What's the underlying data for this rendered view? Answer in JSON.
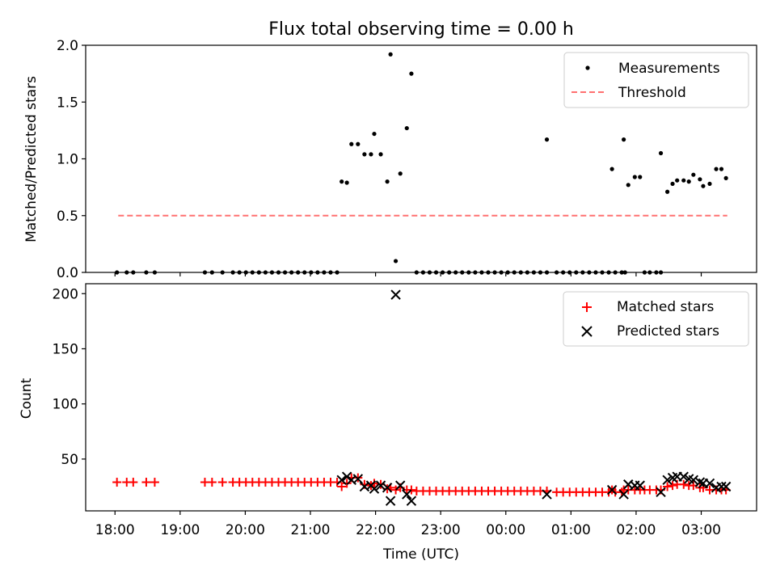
{
  "title": "Flux total observing time = 0.00 h",
  "chart_data": [
    {
      "type": "scatter",
      "ylabel": "Matched/Predicted stars",
      "xlabel": "",
      "x_unit": "hours since 18:00 UTC",
      "xlim": [
        -0.45,
        9.85
      ],
      "ylim": [
        0,
        2.0
      ],
      "yticks": [
        0.0,
        0.5,
        1.0,
        1.5,
        2.0
      ],
      "ytick_labels": [
        "0.0",
        "0.5",
        "1.0",
        "1.5",
        "2.0"
      ],
      "grid": false,
      "legend_position": "top-right",
      "legend": [
        "Measurements",
        "Threshold"
      ],
      "series": [
        {
          "name": "Measurements",
          "marker": "dot",
          "color": "#000000",
          "points": [
            [
              0.03,
              0
            ],
            [
              0.18,
              0
            ],
            [
              0.28,
              0
            ],
            [
              0.48,
              0
            ],
            [
              0.61,
              0
            ],
            [
              1.38,
              0
            ],
            [
              1.49,
              0
            ],
            [
              1.65,
              0
            ],
            [
              1.81,
              0
            ],
            [
              1.91,
              0
            ],
            [
              2.01,
              0
            ],
            [
              2.11,
              0
            ],
            [
              2.21,
              0
            ],
            [
              2.31,
              0
            ],
            [
              2.41,
              0
            ],
            [
              2.51,
              0
            ],
            [
              2.61,
              0
            ],
            [
              2.71,
              0
            ],
            [
              2.81,
              0
            ],
            [
              2.91,
              0
            ],
            [
              3.01,
              0
            ],
            [
              3.11,
              0
            ],
            [
              3.21,
              0
            ],
            [
              3.31,
              0
            ],
            [
              3.41,
              0
            ],
            [
              3.48,
              0.8
            ],
            [
              3.56,
              0.79
            ],
            [
              3.63,
              1.13
            ],
            [
              3.73,
              1.13
            ],
            [
              3.83,
              1.04
            ],
            [
              3.93,
              1.04
            ],
            [
              3.98,
              1.22
            ],
            [
              4.08,
              1.04
            ],
            [
              4.18,
              0.8
            ],
            [
              4.23,
              1.92
            ],
            [
              4.31,
              0.1
            ],
            [
              4.38,
              0.87
            ],
            [
              4.48,
              1.27
            ],
            [
              4.55,
              1.75
            ],
            [
              4.63,
              0
            ],
            [
              4.73,
              0
            ],
            [
              4.83,
              0
            ],
            [
              4.93,
              0
            ],
            [
              5.03,
              0
            ],
            [
              5.13,
              0
            ],
            [
              5.23,
              0
            ],
            [
              5.33,
              0
            ],
            [
              5.43,
              0
            ],
            [
              5.53,
              0
            ],
            [
              5.63,
              0
            ],
            [
              5.73,
              0
            ],
            [
              5.83,
              0
            ],
            [
              5.93,
              0
            ],
            [
              6.03,
              0
            ],
            [
              6.13,
              0
            ],
            [
              6.23,
              0
            ],
            [
              6.33,
              0
            ],
            [
              6.43,
              0
            ],
            [
              6.53,
              0
            ],
            [
              6.63,
              0
            ],
            [
              6.63,
              1.17
            ],
            [
              6.78,
              0
            ],
            [
              6.88,
              0
            ],
            [
              6.98,
              0
            ],
            [
              7.08,
              0
            ],
            [
              7.18,
              0
            ],
            [
              7.28,
              0
            ],
            [
              7.38,
              0
            ],
            [
              7.48,
              0
            ],
            [
              7.58,
              0
            ],
            [
              7.68,
              0
            ],
            [
              7.78,
              0
            ],
            [
              7.63,
              0.91
            ],
            [
              7.81,
              1.17
            ],
            [
              7.88,
              0.77
            ],
            [
              7.98,
              0.84
            ],
            [
              8.06,
              0.84
            ],
            [
              7.83,
              0
            ],
            [
              8.13,
              0
            ],
            [
              8.21,
              0
            ],
            [
              8.31,
              0
            ],
            [
              8.38,
              0
            ],
            [
              8.38,
              1.05
            ],
            [
              8.48,
              0.71
            ],
            [
              8.56,
              0.78
            ],
            [
              8.63,
              0.81
            ],
            [
              8.73,
              0.81
            ],
            [
              8.81,
              0.8
            ],
            [
              8.88,
              0.86
            ],
            [
              8.98,
              0.82
            ],
            [
              9.03,
              0.76
            ],
            [
              9.13,
              0.78
            ],
            [
              9.23,
              0.91
            ],
            [
              9.31,
              0.91
            ],
            [
              9.38,
              0.83
            ]
          ]
        },
        {
          "name": "Threshold",
          "style": "dashed",
          "color": "#ff7070",
          "x": [
            0.05,
            9.4
          ],
          "y": [
            0.5,
            0.5
          ]
        }
      ]
    },
    {
      "type": "scatter",
      "ylabel": "Count",
      "xlabel": "Time (UTC)",
      "x_unit": "hours since 18:00 UTC",
      "xlim": [
        -0.45,
        9.85
      ],
      "ylim": [
        3,
        209
      ],
      "yticks": [
        50,
        100,
        150,
        200
      ],
      "ytick_labels": [
        "50",
        "100",
        "150",
        "200"
      ],
      "xticks": [
        0,
        1,
        2,
        3,
        4,
        5,
        6,
        7,
        8,
        9
      ],
      "xtick_labels": [
        "18:00",
        "19:00",
        "20:00",
        "21:00",
        "22:00",
        "23:00",
        "00:00",
        "01:00",
        "02:00",
        "03:00"
      ],
      "grid": false,
      "legend_position": "top-right",
      "legend": [
        "Matched stars",
        "Predicted stars"
      ],
      "series": [
        {
          "name": "Matched stars",
          "marker": "plus",
          "color": "#ff0000",
          "points": [
            [
              0.03,
              29
            ],
            [
              0.18,
              29
            ],
            [
              0.28,
              29
            ],
            [
              0.48,
              29
            ],
            [
              0.61,
              29
            ],
            [
              1.38,
              29
            ],
            [
              1.49,
              29
            ],
            [
              1.65,
              29
            ],
            [
              1.81,
              29
            ],
            [
              1.91,
              29
            ],
            [
              2.01,
              29
            ],
            [
              2.11,
              29
            ],
            [
              2.21,
              29
            ],
            [
              2.31,
              29
            ],
            [
              2.41,
              29
            ],
            [
              2.51,
              29
            ],
            [
              2.61,
              29
            ],
            [
              2.71,
              29
            ],
            [
              2.81,
              29
            ],
            [
              2.91,
              29
            ],
            [
              3.01,
              29
            ],
            [
              3.11,
              29
            ],
            [
              3.21,
              29
            ],
            [
              3.31,
              29
            ],
            [
              3.41,
              29
            ],
            [
              3.48,
              25
            ],
            [
              3.56,
              28
            ],
            [
              3.63,
              33
            ],
            [
              3.73,
              33
            ],
            [
              3.83,
              27
            ],
            [
              3.93,
              26
            ],
            [
              3.98,
              28
            ],
            [
              4.08,
              27
            ],
            [
              4.18,
              23
            ],
            [
              4.23,
              24
            ],
            [
              4.31,
              22
            ],
            [
              4.38,
              24
            ],
            [
              4.48,
              22
            ],
            [
              4.55,
              22
            ],
            [
              4.63,
              21
            ],
            [
              4.73,
              21
            ],
            [
              4.83,
              21
            ],
            [
              4.93,
              21
            ],
            [
              5.03,
              21
            ],
            [
              5.13,
              21
            ],
            [
              5.23,
              21
            ],
            [
              5.33,
              21
            ],
            [
              5.43,
              21
            ],
            [
              5.53,
              21
            ],
            [
              5.63,
              21
            ],
            [
              5.73,
              21
            ],
            [
              5.83,
              21
            ],
            [
              5.93,
              21
            ],
            [
              6.03,
              21
            ],
            [
              6.13,
              21
            ],
            [
              6.23,
              21
            ],
            [
              6.33,
              21
            ],
            [
              6.43,
              21
            ],
            [
              6.53,
              21
            ],
            [
              6.63,
              21
            ],
            [
              6.78,
              20
            ],
            [
              6.88,
              20
            ],
            [
              6.98,
              20
            ],
            [
              7.08,
              20
            ],
            [
              7.18,
              20
            ],
            [
              7.28,
              20
            ],
            [
              7.38,
              20
            ],
            [
              7.48,
              20
            ],
            [
              7.58,
              20
            ],
            [
              7.68,
              20
            ],
            [
              7.78,
              20
            ],
            [
              7.63,
              22
            ],
            [
              7.81,
              22
            ],
            [
              7.88,
              22
            ],
            [
              7.98,
              22
            ],
            [
              8.06,
              22
            ],
            [
              8.13,
              22
            ],
            [
              8.21,
              22
            ],
            [
              8.31,
              22
            ],
            [
              8.38,
              22
            ],
            [
              8.48,
              25
            ],
            [
              8.56,
              26
            ],
            [
              8.63,
              27
            ],
            [
              8.73,
              27
            ],
            [
              8.81,
              26
            ],
            [
              8.88,
              26
            ],
            [
              8.98,
              24
            ],
            [
              9.03,
              24
            ],
            [
              9.13,
              22
            ],
            [
              9.23,
              22
            ],
            [
              9.31,
              22
            ],
            [
              9.38,
              22
            ]
          ]
        },
        {
          "name": "Predicted stars",
          "marker": "x",
          "color": "#000000",
          "points": [
            [
              3.48,
              31
            ],
            [
              3.56,
              34
            ],
            [
              3.63,
              31
            ],
            [
              3.73,
              32
            ],
            [
              3.83,
              25
            ],
            [
              3.93,
              26
            ],
            [
              3.98,
              23
            ],
            [
              4.08,
              26
            ],
            [
              4.18,
              24
            ],
            [
              4.23,
              12
            ],
            [
              4.31,
              199
            ],
            [
              4.38,
              26
            ],
            [
              4.48,
              18
            ],
            [
              4.55,
              12
            ],
            [
              6.63,
              18
            ],
            [
              7.63,
              22
            ],
            [
              7.81,
              18
            ],
            [
              7.88,
              27
            ],
            [
              7.98,
              26
            ],
            [
              8.06,
              26
            ],
            [
              8.38,
              20
            ],
            [
              8.48,
              31
            ],
            [
              8.56,
              33
            ],
            [
              8.63,
              34
            ],
            [
              8.73,
              34
            ],
            [
              8.81,
              32
            ],
            [
              8.88,
              31
            ],
            [
              8.98,
              29
            ],
            [
              9.03,
              28
            ],
            [
              9.13,
              28
            ],
            [
              9.23,
              24
            ],
            [
              9.31,
              25
            ],
            [
              9.38,
              25
            ]
          ]
        }
      ]
    }
  ]
}
